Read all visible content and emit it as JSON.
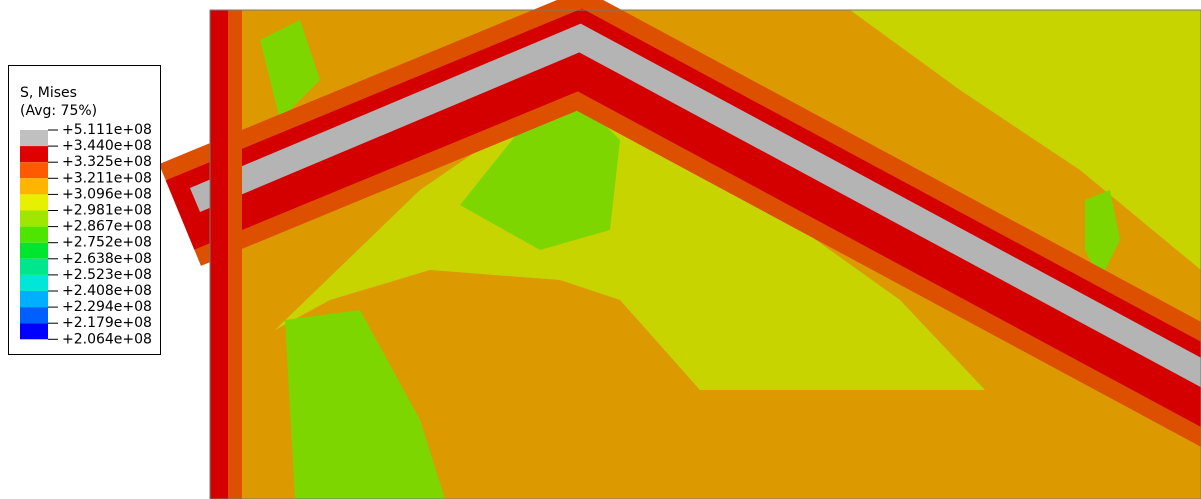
{
  "legend": {
    "title": "S, Mises",
    "subtitle": "(Avg: 75%)",
    "labels": [
      "+5.111e+08",
      "+3.440e+08",
      "+3.325e+08",
      "+3.211e+08",
      "+3.096e+08",
      "+2.981e+08",
      "+2.867e+08",
      "+2.752e+08",
      "+2.638e+08",
      "+2.523e+08",
      "+2.408e+08",
      "+2.294e+08",
      "+2.179e+08",
      "+2.064e+08"
    ],
    "colors": [
      "#c0c0c0",
      "#e00000",
      "#ff5a00",
      "#ffb400",
      "#e6f000",
      "#9fe600",
      "#4ee600",
      "#00e62e",
      "#00e68c",
      "#00e6d8",
      "#00b0ff",
      "#0060ff",
      "#0000ff"
    ]
  }
}
